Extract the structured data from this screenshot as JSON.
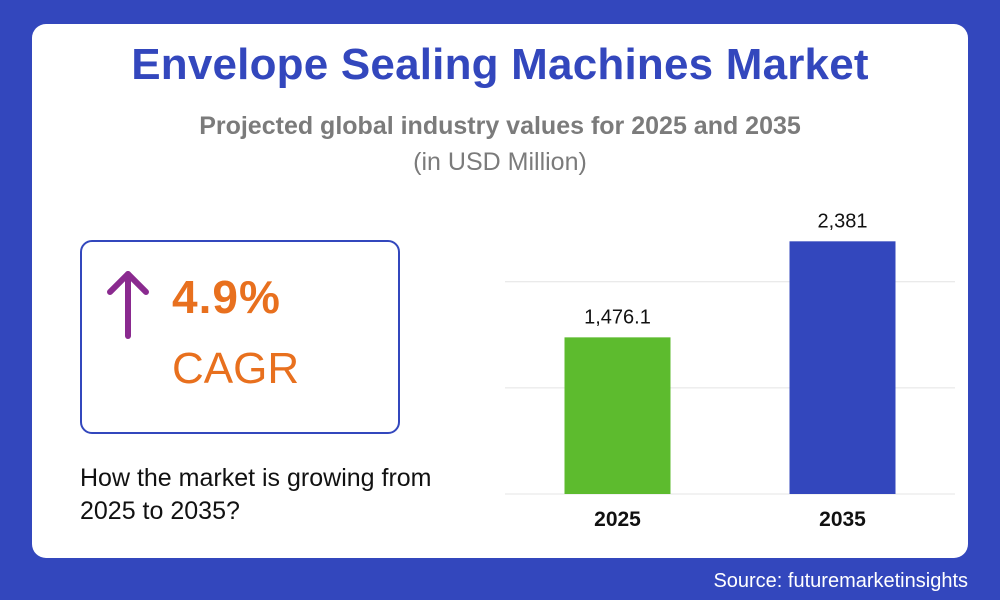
{
  "title": "Envelope Sealing Machines Market",
  "subtitle": "Projected global industry values for 2025 and 2035",
  "units": "(in USD Million)",
  "cagr": {
    "value": "4.9%",
    "label": "CAGR",
    "icon": "up-arrow-icon"
  },
  "question": "How the market is growing from 2025 to 2035?",
  "source": "Source: futuremarketinsights",
  "colors": {
    "background": "#3347bd",
    "title": "#3347bd",
    "accent": "#e8701e",
    "arrow": "#8a2a8f",
    "bar_2025": "#5dbb2e",
    "bar_2035": "#3347bd"
  },
  "chart_data": {
    "type": "bar",
    "categories": [
      "2025",
      "2035"
    ],
    "values": [
      1476.1,
      2381
    ],
    "data_labels": [
      "1,476.1",
      "2,381"
    ],
    "bar_colors": [
      "#5dbb2e",
      "#3347bd"
    ],
    "ylim": [
      0,
      2450
    ],
    "gridlines": [
      0,
      1000,
      2000
    ],
    "grid": true,
    "title": "",
    "xlabel": "",
    "ylabel": ""
  }
}
